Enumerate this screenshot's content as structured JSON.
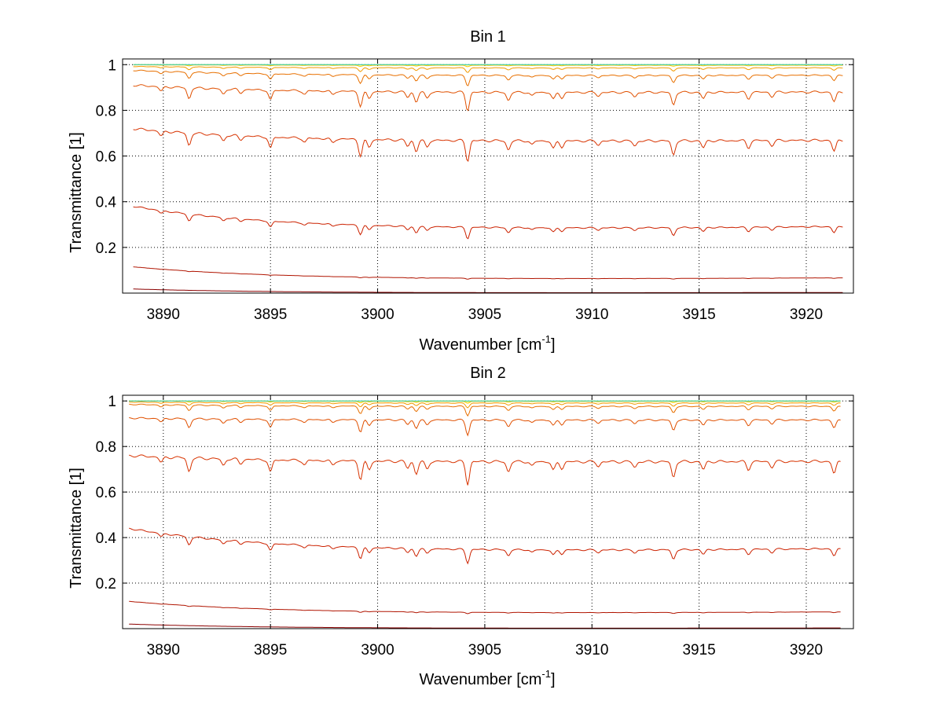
{
  "chart_data": [
    {
      "type": "line",
      "title": "Bin 1",
      "xlabel": "Wavenumber [cm",
      "xlabel_sup": "-1",
      "xlabel_close": "]",
      "ylabel": "Transmittance [1]",
      "xlim": [
        3888.1,
        3922.2
      ],
      "ylim": [
        0.0,
        1.025
      ],
      "xticks": [
        3890,
        3895,
        3900,
        3905,
        3910,
        3915,
        3920
      ],
      "xtick_labels": [
        "3890",
        "3895",
        "3900",
        "3905",
        "3910",
        "3915",
        "3920"
      ],
      "yticks": [
        0.2,
        0.4,
        0.6,
        0.8,
        1.0
      ],
      "ytick_labels": [
        "0.2",
        "0.4",
        "0.6",
        "0.8",
        "1"
      ],
      "grid": true,
      "x_range": [
        3888.6,
        3921.7
      ],
      "lines": [
        {
          "color": "#8b0000",
          "edge": [
            0.018,
            0.0
          ],
          "depth": 0.0
        },
        {
          "color": "#b01400",
          "edge": [
            0.115,
            0.058
          ],
          "depth": 0.004
        },
        {
          "color": "#cc2200",
          "edge": [
            0.38,
            0.275
          ],
          "depth": 0.05
        },
        {
          "color": "#d83300",
          "edge": [
            0.72,
            0.66
          ],
          "depth": 0.09
        },
        {
          "color": "#e05000",
          "edge": [
            0.91,
            0.875
          ],
          "depth": 0.08
        },
        {
          "color": "#e87000",
          "edge": [
            0.975,
            0.95
          ],
          "depth": 0.045
        },
        {
          "color": "#f39a00",
          "edge": [
            0.992,
            0.985
          ],
          "depth": 0.02
        },
        {
          "color": "#ffcc00",
          "edge": [
            0.999,
            0.997
          ],
          "depth": 0.006
        },
        {
          "color": "#e8e800",
          "edge": [
            1.0,
            1.0
          ],
          "depth": 0.002
        },
        {
          "color": "#22cccc",
          "edge": [
            1.0,
            1.0
          ],
          "depth": 0.0
        }
      ]
    },
    {
      "type": "line",
      "title": "Bin 2",
      "xlabel": "Wavenumber [cm",
      "xlabel_sup": "-1",
      "xlabel_close": "]",
      "ylabel": "Transmittance [1]",
      "xlim": [
        3888.1,
        3922.2
      ],
      "ylim": [
        0.0,
        1.025
      ],
      "xticks": [
        3890,
        3895,
        3900,
        3905,
        3910,
        3915,
        3920
      ],
      "xtick_labels": [
        "3890",
        "3895",
        "3900",
        "3905",
        "3910",
        "3915",
        "3920"
      ],
      "yticks": [
        0.2,
        0.4,
        0.6,
        0.8,
        1.0
      ],
      "ytick_labels": [
        "0.2",
        "0.4",
        "0.6",
        "0.8",
        "1"
      ],
      "grid": true,
      "x_range": [
        3888.4,
        3921.6
      ],
      "lines": [
        {
          "color": "#8b0000",
          "edge": [
            0.02,
            0.0
          ],
          "depth": 0.0
        },
        {
          "color": "#b01400",
          "edge": [
            0.12,
            0.065
          ],
          "depth": 0.006
        },
        {
          "color": "#cc2200",
          "edge": [
            0.44,
            0.335
          ],
          "depth": 0.06
        },
        {
          "color": "#d83300",
          "edge": [
            0.76,
            0.73
          ],
          "depth": 0.1
        },
        {
          "color": "#e05000",
          "edge": [
            0.925,
            0.915
          ],
          "depth": 0.065
        },
        {
          "color": "#e87000",
          "edge": [
            0.985,
            0.975
          ],
          "depth": 0.04
        },
        {
          "color": "#f39a00",
          "edge": [
            0.995,
            0.99
          ],
          "depth": 0.02
        },
        {
          "color": "#ffcc00",
          "edge": [
            1.0,
            0.998
          ],
          "depth": 0.008
        },
        {
          "color": "#e8e800",
          "edge": [
            1.0,
            1.0
          ],
          "depth": 0.003
        },
        {
          "color": "#22cccc",
          "edge": [
            1.0,
            1.0
          ],
          "depth": 0.0
        }
      ]
    }
  ]
}
